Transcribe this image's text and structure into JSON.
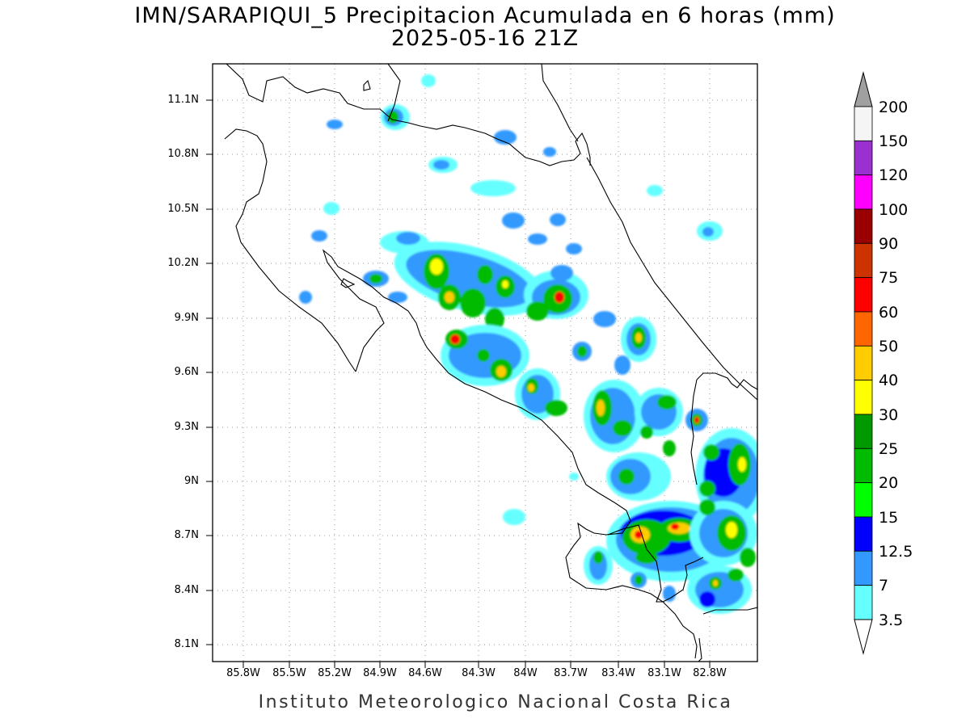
{
  "title_line1": "IMN/SARAPIQUI_5 Precipitacion Acumulada en 6 horas (mm)",
  "title_line2": "2025-05-16 21Z",
  "credit": "Instituto Meteorologico Nacional Costa Rica",
  "lat_ticks": [
    "11.1N",
    "10.8N",
    "10.5N",
    "10.2N",
    "9.9N",
    "9.6N",
    "9.3N",
    "9N",
    "8.7N",
    "8.4N",
    "8.1N"
  ],
  "lon_ticks": [
    "85.8W",
    "85.5W",
    "85.2W",
    "84.9W",
    "84.6W",
    "84.3W",
    "84W",
    "83.7W",
    "83.4W",
    "83.1W",
    "82.8W"
  ],
  "colorbar": {
    "labels": [
      "200",
      "150",
      "120",
      "100",
      "90",
      "75",
      "60",
      "50",
      "40",
      "30",
      "25",
      "20",
      "15",
      "12.5",
      "7",
      "3.5"
    ],
    "colors_top_to_bottom": [
      "#f5f5f5",
      "#9b30d0",
      "#ff00ff",
      "#9b0000",
      "#cc3300",
      "#ff0000",
      "#ff6600",
      "#ffcc00",
      "#ffff00",
      "#009900",
      "#00bb00",
      "#00ff00",
      "#0000ff",
      "#3399ff",
      "#66ffff"
    ],
    "over_color": "#a0a0a0",
    "under_color": "#ffffff"
  }
}
